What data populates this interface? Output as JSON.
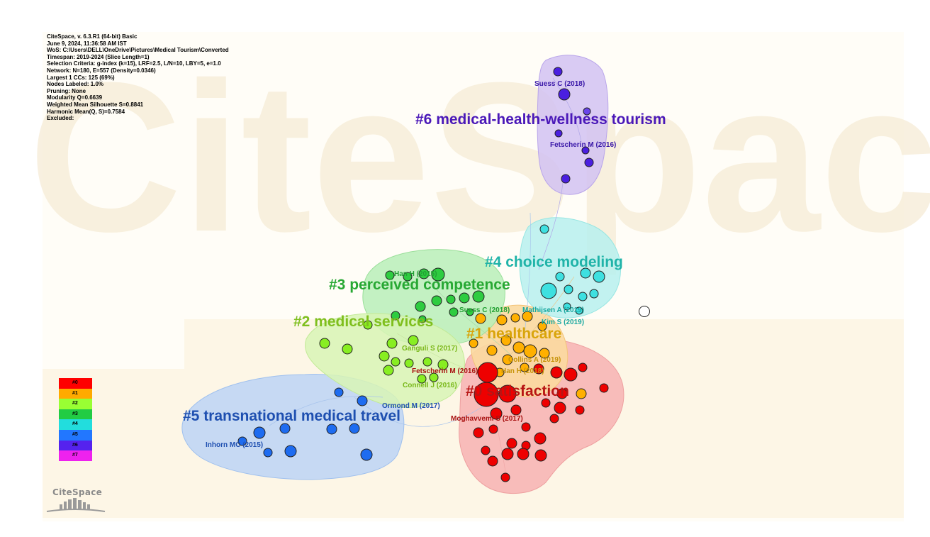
{
  "app": {
    "watermark": "CiteSpace",
    "logo_text": "CiteSpace"
  },
  "meta_lines": [
    "CiteSpace, v. 6.3.R1 (64-bit) Basic",
    "June 9, 2024, 11:36:58 AM IST",
    "WoS: C:\\Users\\DELL\\OneDrive\\Pictures\\Medical Tourism\\Converted",
    "Timespan: 2019-2024 (Slice Length=1)",
    "Selection Criteria: g-index (k=15), LRF=2.5, L/N=10, LBY=5, e=1.0",
    "Network: N=180, E=557 (Density=0.0346)",
    "Largest 1 CCs: 125 (69%)",
    "Nodes Labeled: 1.0%",
    "Pruning: None",
    "Modularity Q=0.6639",
    "Weighted Mean Silhouette S=0.8841",
    "Harmonic Mean(Q, S)=0.7584",
    "Excluded:"
  ],
  "legend": [
    {
      "label": "#0",
      "color": "#ff0000"
    },
    {
      "label": "#1",
      "color": "#ffaa00"
    },
    {
      "label": "#2",
      "color": "#99ff33"
    },
    {
      "label": "#3",
      "color": "#22cc44"
    },
    {
      "label": "#4",
      "color": "#22dddd"
    },
    {
      "label": "#5",
      "color": "#2277ff"
    },
    {
      "label": "#6",
      "color": "#5522ee"
    },
    {
      "label": "#7",
      "color": "#ee22ee"
    }
  ],
  "clusters": [
    {
      "id": "0",
      "label": "#0 satisfaction",
      "color": "#b81414",
      "hull_color": "#f7b2b2"
    },
    {
      "id": "1",
      "label": "#1 healthcare",
      "color": "#d9a40a",
      "hull_color": "#fbd9a0"
    },
    {
      "id": "2",
      "label": "#2 medical services",
      "color": "#7fbf1e",
      "hull_color": "#d8f5b5"
    },
    {
      "id": "3",
      "label": "#3 perceived competence",
      "color": "#27a833",
      "hull_color": "#b9eeb9"
    },
    {
      "id": "4",
      "label": "#4 choice modeling",
      "color": "#1fb3a8",
      "hull_color": "#b7f0ee"
    },
    {
      "id": "5",
      "label": "#5 transnational medical travel",
      "color": "#1e4fb0",
      "hull_color": "#bcd4f5"
    },
    {
      "id": "6",
      "label": "#6 medical-health-wellness tourism",
      "color": "#4a18b8",
      "hull_color": "#d2c2f2"
    }
  ],
  "node_labels": [
    {
      "text": "Suess C (2018)",
      "cluster": "6"
    },
    {
      "text": "Fetscherin M (2016)",
      "cluster": "6"
    },
    {
      "text": "Han H (2015)",
      "cluster": "3"
    },
    {
      "text": "Suess C (2018)",
      "cluster": "3"
    },
    {
      "text": "Mathijsen A (2019)",
      "cluster": "4"
    },
    {
      "text": "Kim S (2019)",
      "cluster": "4"
    },
    {
      "text": "Ganguli S (2017)",
      "cluster": "2"
    },
    {
      "text": "Collins A (2019)",
      "cluster": "1"
    },
    {
      "text": "Fetscherin M (2016)",
      "cluster": "0"
    },
    {
      "text": "Han H (2018)",
      "cluster": "1"
    },
    {
      "text": "Connell J (2016)",
      "cluster": "2"
    },
    {
      "text": "Ormond M (2017)",
      "cluster": "5"
    },
    {
      "text": "Moghavvemi S (2017)",
      "cluster": "0"
    },
    {
      "text": "Inhorn MC (2015)",
      "cluster": "5"
    }
  ]
}
